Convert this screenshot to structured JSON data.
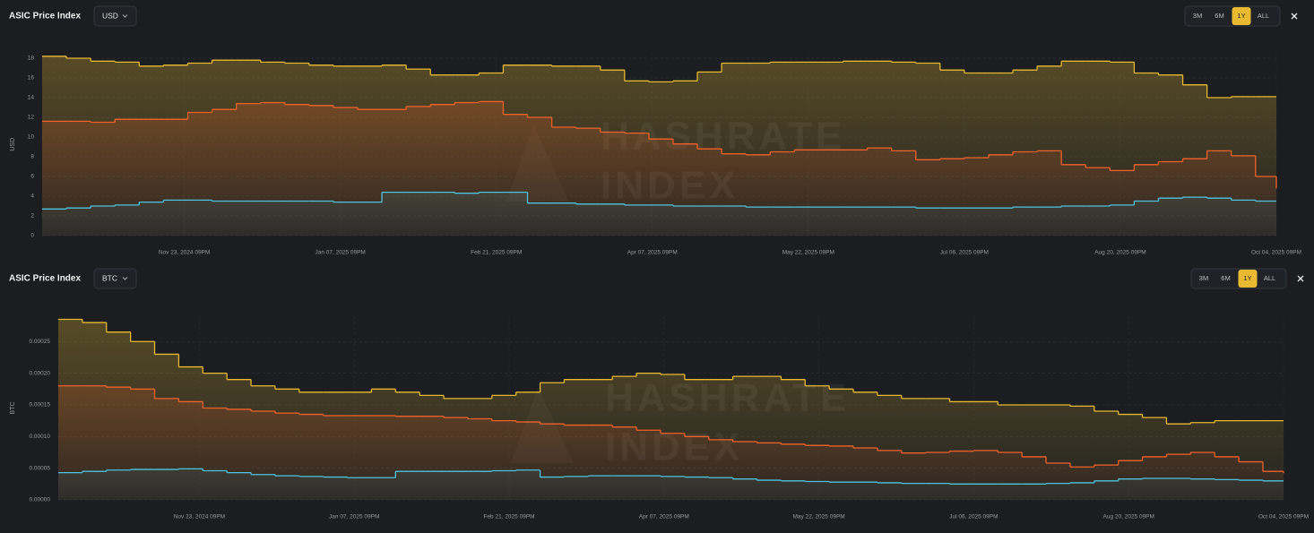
{
  "chart_data": [
    {
      "type": "line",
      "title": "ASIC Price Index",
      "currency": "USD",
      "ranges": [
        "3M",
        "6M",
        "1Y",
        "ALL"
      ],
      "active_range": "1Y",
      "y_label": "USD",
      "watermark": [
        "HASHRATE",
        "INDEX"
      ],
      "grid": true,
      "x": [
        "2024-10-13",
        "2024-10-20",
        "2024-10-27",
        "2024-11-03",
        "2024-11-10",
        "2024-11-17",
        "2024-11-24",
        "2024-12-01",
        "2024-12-08",
        "2024-12-15",
        "2024-12-22",
        "2024-12-29",
        "2025-01-05",
        "2025-01-12",
        "2025-01-19",
        "2025-01-26",
        "2025-02-02",
        "2025-02-09",
        "2025-02-16",
        "2025-02-23",
        "2025-03-02",
        "2025-03-09",
        "2025-03-16",
        "2025-03-23",
        "2025-03-30",
        "2025-04-06",
        "2025-04-13",
        "2025-04-20",
        "2025-04-27",
        "2025-05-04",
        "2025-05-11",
        "2025-05-18",
        "2025-05-25",
        "2025-06-01",
        "2025-06-08",
        "2025-06-15",
        "2025-06-22",
        "2025-06-29",
        "2025-07-06",
        "2025-07-13",
        "2025-07-20",
        "2025-07-27",
        "2025-08-03",
        "2025-08-10",
        "2025-08-17",
        "2025-08-24",
        "2025-08-31",
        "2025-09-07",
        "2025-09-14",
        "2025-09-21",
        "2025-09-28",
        "2025-10-04"
      ],
      "xlim": [
        "2024-10-13",
        "2025-10-04"
      ],
      "xticks": [
        {
          "value": "2024-11-23",
          "label": "Nov 23, 2024 09PM"
        },
        {
          "value": "2025-01-07",
          "label": "Jan 07, 2025 09PM"
        },
        {
          "value": "2025-02-21",
          "label": "Feb 21, 2025 09PM"
        },
        {
          "value": "2025-04-07",
          "label": "Apr 07, 2025 09PM"
        },
        {
          "value": "2025-05-22",
          "label": "May 22, 2025 09PM"
        },
        {
          "value": "2025-07-06",
          "label": "Jul 06, 2025 09PM"
        },
        {
          "value": "2025-08-20",
          "label": "Aug 20, 2025 09PM"
        },
        {
          "value": "2025-10-04",
          "label": "Oct 04, 2025 09PM"
        }
      ],
      "ylim": [
        0,
        18.5
      ],
      "yticks": [
        0,
        2,
        4,
        6,
        8,
        10,
        12,
        14,
        16,
        18
      ],
      "series": [
        {
          "color": "#e8b931",
          "values": [
            18.2,
            18.0,
            17.7,
            17.6,
            17.2,
            17.3,
            17.5,
            17.8,
            17.8,
            17.6,
            17.5,
            17.3,
            17.2,
            17.2,
            17.3,
            16.9,
            16.3,
            16.3,
            16.5,
            17.3,
            17.3,
            17.2,
            17.2,
            16.8,
            15.7,
            15.6,
            15.7,
            16.6,
            17.5,
            17.5,
            17.6,
            17.6,
            17.6,
            17.7,
            17.7,
            17.6,
            17.5,
            16.8,
            16.5,
            16.5,
            16.8,
            17.2,
            17.7,
            17.7,
            17.6,
            16.5,
            16.3,
            15.3,
            14.0,
            14.1,
            14.1,
            14.1
          ]
        },
        {
          "color": "#f0622a",
          "values": [
            11.6,
            11.6,
            11.5,
            11.8,
            11.8,
            11.8,
            12.5,
            12.8,
            13.4,
            13.5,
            13.3,
            13.2,
            13.0,
            12.8,
            12.8,
            13.1,
            13.3,
            13.5,
            13.6,
            12.3,
            12.0,
            11.0,
            10.9,
            10.5,
            10.4,
            9.8,
            9.3,
            8.8,
            8.3,
            8.2,
            8.5,
            8.7,
            8.7,
            8.7,
            8.9,
            8.6,
            7.7,
            7.8,
            7.9,
            8.2,
            8.5,
            8.6,
            7.2,
            6.9,
            6.6,
            7.2,
            7.5,
            7.8,
            8.6,
            8.1,
            6.0,
            4.8
          ]
        },
        {
          "color": "#4ec3e0",
          "values": [
            2.7,
            2.8,
            3.0,
            3.1,
            3.4,
            3.6,
            3.6,
            3.5,
            3.5,
            3.5,
            3.5,
            3.5,
            3.4,
            3.4,
            4.4,
            4.4,
            4.4,
            4.3,
            4.4,
            4.4,
            3.3,
            3.3,
            3.2,
            3.2,
            3.1,
            3.1,
            3.0,
            3.0,
            3.0,
            2.9,
            2.9,
            2.9,
            2.9,
            2.9,
            2.9,
            2.9,
            2.8,
            2.8,
            2.8,
            2.8,
            2.9,
            2.9,
            3.0,
            3.0,
            3.1,
            3.5,
            3.8,
            3.9,
            3.8,
            3.6,
            3.5,
            3.5
          ]
        }
      ]
    },
    {
      "type": "line",
      "title": "ASIC Price Index",
      "currency": "BTC",
      "ranges": [
        "3M",
        "6M",
        "1Y",
        "ALL"
      ],
      "active_range": "1Y",
      "y_label": "BTC",
      "watermark": [
        "HASHRATE",
        "INDEX"
      ],
      "grid": true,
      "x": [
        "2024-10-13",
        "2024-10-20",
        "2024-10-27",
        "2024-11-03",
        "2024-11-10",
        "2024-11-17",
        "2024-11-24",
        "2024-12-01",
        "2024-12-08",
        "2024-12-15",
        "2024-12-22",
        "2024-12-29",
        "2025-01-05",
        "2025-01-12",
        "2025-01-19",
        "2025-01-26",
        "2025-02-02",
        "2025-02-09",
        "2025-02-16",
        "2025-02-23",
        "2025-03-02",
        "2025-03-09",
        "2025-03-16",
        "2025-03-23",
        "2025-03-30",
        "2025-04-06",
        "2025-04-13",
        "2025-04-20",
        "2025-04-27",
        "2025-05-04",
        "2025-05-11",
        "2025-05-18",
        "2025-05-25",
        "2025-06-01",
        "2025-06-08",
        "2025-06-15",
        "2025-06-22",
        "2025-06-29",
        "2025-07-06",
        "2025-07-13",
        "2025-07-20",
        "2025-07-27",
        "2025-08-03",
        "2025-08-10",
        "2025-08-17",
        "2025-08-24",
        "2025-08-31",
        "2025-09-07",
        "2025-09-14",
        "2025-09-21",
        "2025-09-28",
        "2025-10-04"
      ],
      "xlim": [
        "2024-10-13",
        "2025-10-04"
      ],
      "xticks": [
        {
          "value": "2024-11-23",
          "label": "Nov 23, 2024 09PM"
        },
        {
          "value": "2025-01-07",
          "label": "Jan 07, 2025 09PM"
        },
        {
          "value": "2025-02-21",
          "label": "Feb 21, 2025 09PM"
        },
        {
          "value": "2025-04-07",
          "label": "Apr 07, 2025 09PM"
        },
        {
          "value": "2025-05-22",
          "label": "May 22, 2025 09PM"
        },
        {
          "value": "2025-07-06",
          "label": "Jul 06, 2025 09PM"
        },
        {
          "value": "2025-08-20",
          "label": "Aug 20, 2025 09PM"
        },
        {
          "value": "2025-10-04",
          "label": "Oct 04, 2025 09PM"
        }
      ],
      "ylim": [
        0,
        0.00029
      ],
      "yticks": [
        {
          "value": 0,
          "label": "0.00000"
        },
        {
          "value": 5e-05,
          "label": "0.00005"
        },
        {
          "value": 0.0001,
          "label": "0.00010"
        },
        {
          "value": 0.00015,
          "label": "0.00015"
        },
        {
          "value": 0.0002,
          "label": "0.00020"
        },
        {
          "value": 0.00025,
          "label": "0.00025"
        }
      ],
      "series": [
        {
          "color": "#e8b931",
          "values": [
            0.000285,
            0.00028,
            0.000265,
            0.00025,
            0.00023,
            0.00021,
            0.0002,
            0.00019,
            0.00018,
            0.000175,
            0.00017,
            0.00017,
            0.00017,
            0.000175,
            0.00017,
            0.000165,
            0.00016,
            0.00016,
            0.000165,
            0.00017,
            0.000185,
            0.00019,
            0.00019,
            0.000195,
            0.0002,
            0.000198,
            0.00019,
            0.00019,
            0.000195,
            0.000195,
            0.00019,
            0.00018,
            0.000175,
            0.00017,
            0.000165,
            0.00016,
            0.00016,
            0.000155,
            0.000155,
            0.00015,
            0.00015,
            0.00015,
            0.000148,
            0.00014,
            0.000135,
            0.00013,
            0.00012,
            0.000122,
            0.000125,
            0.000125,
            0.000125,
            0.000125
          ]
        },
        {
          "color": "#f0622a",
          "values": [
            0.00018,
            0.00018,
            0.000178,
            0.000175,
            0.00016,
            0.000155,
            0.000145,
            0.000143,
            0.00014,
            0.000137,
            0.000135,
            0.000133,
            0.000133,
            0.000133,
            0.000132,
            0.000132,
            0.00013,
            0.000128,
            0.000125,
            0.000123,
            0.00012,
            0.000118,
            0.000118,
            0.000115,
            0.00011,
            0.000105,
            0.0001,
            9.5e-05,
            9.2e-05,
            9e-05,
            8.8e-05,
            8.6e-05,
            8.5e-05,
            8.2e-05,
            7.8e-05,
            7.4e-05,
            7.5e-05,
            7.7e-05,
            7.8e-05,
            7.5e-05,
            6.8e-05,
            5.8e-05,
            5.2e-05,
            5.5e-05,
            6.2e-05,
            6.8e-05,
            7.2e-05,
            7.5e-05,
            6.8e-05,
            6e-05,
            4.5e-05,
            4.2e-05
          ]
        },
        {
          "color": "#4ec3e0",
          "values": [
            4.3e-05,
            4.5e-05,
            4.7e-05,
            4.8e-05,
            4.8e-05,
            4.9e-05,
            4.6e-05,
            4.3e-05,
            4e-05,
            3.8e-05,
            3.7e-05,
            3.6e-05,
            3.5e-05,
            3.5e-05,
            4.5e-05,
            4.5e-05,
            4.5e-05,
            4.5e-05,
            4.6e-05,
            4.7e-05,
            3.6e-05,
            3.7e-05,
            3.8e-05,
            3.8e-05,
            3.8e-05,
            3.7e-05,
            3.6e-05,
            3.5e-05,
            3.3e-05,
            3.1e-05,
            3e-05,
            2.9e-05,
            2.8e-05,
            2.8e-05,
            2.7e-05,
            2.6e-05,
            2.6e-05,
            2.5e-05,
            2.5e-05,
            2.5e-05,
            2.5e-05,
            2.6e-05,
            2.7e-05,
            3e-05,
            3.3e-05,
            3.4e-05,
            3.4e-05,
            3.3e-05,
            3.2e-05,
            3.1e-05,
            3e-05,
            3e-05
          ]
        }
      ]
    }
  ]
}
